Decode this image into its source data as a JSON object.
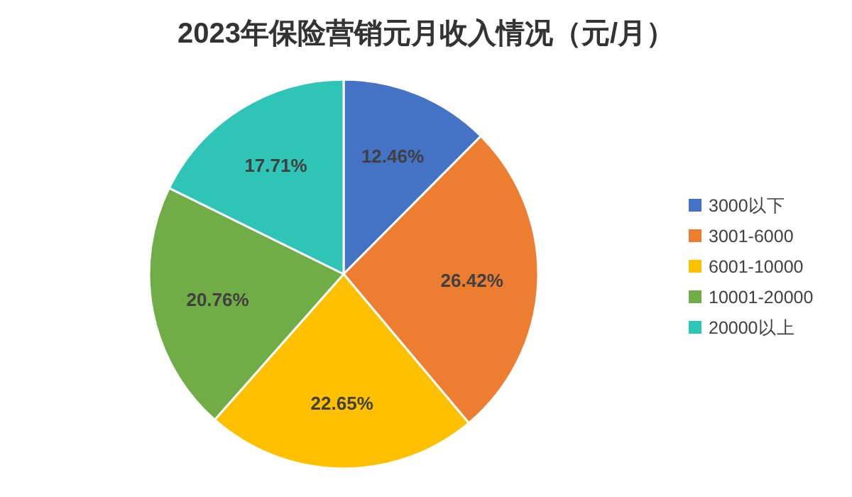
{
  "chart_data": {
    "type": "pie",
    "title": "2023年保险营销元月收入情况（元/月）",
    "categories": [
      "3000以下",
      "3001-6000",
      "6001-10000",
      "10001-20000",
      "20000以上"
    ],
    "values": [
      12.46,
      26.42,
      22.65,
      20.76,
      17.71
    ],
    "colors": [
      "#4472c4",
      "#ed7d31",
      "#ffc000",
      "#70ad47",
      "#2ec4b6"
    ],
    "value_labels": [
      "12.46%",
      "26.42%",
      "22.65%",
      "20.76%",
      "17.71%"
    ],
    "legend": "right"
  }
}
